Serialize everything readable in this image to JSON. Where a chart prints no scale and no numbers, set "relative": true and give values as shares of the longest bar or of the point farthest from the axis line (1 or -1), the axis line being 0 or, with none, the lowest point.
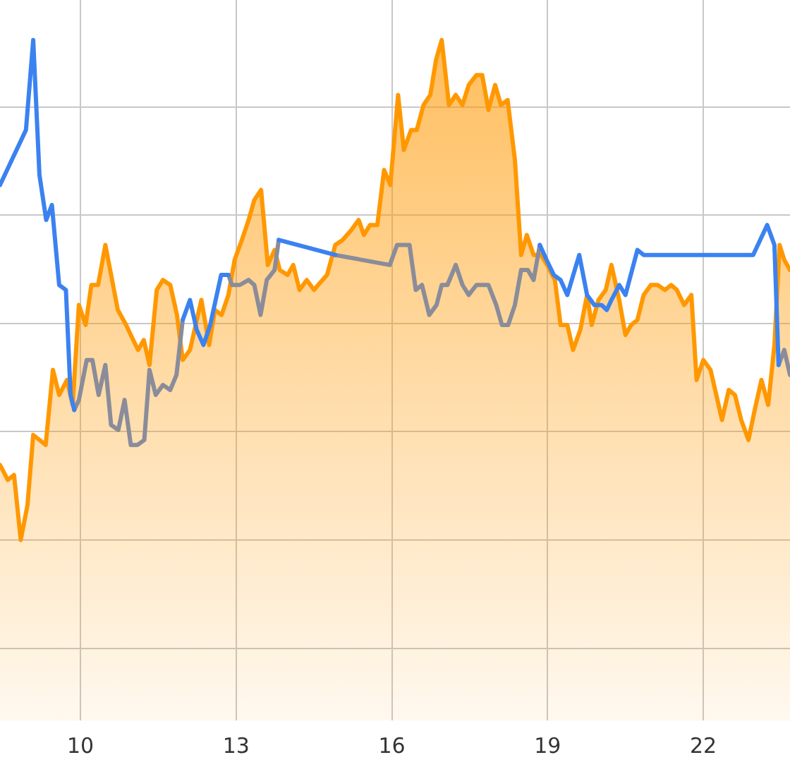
{
  "chart_data": {
    "type": "line",
    "relative": true,
    "grid": true,
    "xlim": [
      8.45,
      23.67
    ],
    "xticks": [
      10,
      13,
      16,
      19,
      22
    ],
    "series": [
      {
        "type": "area",
        "color": "#ff9800",
        "x": [
          8.45,
          8.6,
          8.72,
          8.85,
          8.98,
          9.09,
          9.33,
          9.47,
          9.59,
          9.74,
          9.85,
          9.97,
          10.1,
          10.21,
          10.34,
          10.48,
          10.72,
          10.88,
          10.97,
          11.11,
          11.22,
          11.33,
          11.47,
          11.59,
          11.73,
          11.86,
          11.97,
          12.11,
          12.33,
          12.48,
          12.59,
          12.72,
          12.85,
          12.97,
          13.11,
          13.24,
          13.35,
          13.48,
          13.61,
          13.74,
          13.84,
          13.99,
          14.1,
          14.22,
          14.36,
          14.5,
          14.58,
          14.75,
          14.91,
          15.05,
          15.22,
          15.36,
          15.46,
          15.58,
          15.72,
          15.85,
          15.97,
          16.12,
          16.23,
          16.37,
          16.48,
          16.61,
          16.74,
          16.85,
          16.96,
          17.1,
          17.23,
          17.36,
          17.48,
          17.63,
          17.74,
          17.86,
          17.99,
          18.1,
          18.23,
          18.37,
          18.49,
          18.6,
          18.73,
          18.87,
          18.99,
          19.14,
          19.25,
          19.38,
          19.49,
          19.63,
          19.76,
          19.85,
          19.98,
          20.12,
          20.23,
          20.38,
          20.5,
          20.61,
          20.73,
          20.85,
          20.99,
          21.12,
          21.26,
          21.38,
          21.49,
          21.63,
          21.77,
          21.87,
          22.0,
          22.14,
          22.25,
          22.36,
          22.49,
          22.61,
          22.73,
          22.87,
          22.99,
          23.12,
          23.25,
          23.37,
          23.47,
          23.56,
          23.67
        ],
        "values": [
          0.15,
          0.12,
          0.13,
          0,
          0.07,
          0.21,
          0.19,
          0.34,
          0.29,
          0.32,
          0.27,
          0.47,
          0.43,
          0.51,
          0.51,
          0.59,
          0.46,
          0.43,
          0.41,
          0.38,
          0.4,
          0.35,
          0.5,
          0.52,
          0.51,
          0.45,
          0.36,
          0.38,
          0.48,
          0.39,
          0.46,
          0.45,
          0.49,
          0.56,
          0.6,
          0.64,
          0.68,
          0.7,
          0.55,
          0.58,
          0.54,
          0.53,
          0.55,
          0.5,
          0.52,
          0.5,
          0.51,
          0.53,
          0.59,
          0.6,
          0.62,
          0.64,
          0.61,
          0.63,
          0.63,
          0.74,
          0.71,
          0.89,
          0.78,
          0.82,
          0.82,
          0.87,
          0.89,
          0.96,
          1,
          0.87,
          0.89,
          0.87,
          0.91,
          0.93,
          0.93,
          0.86,
          0.91,
          0.87,
          0.88,
          0.76,
          0.57,
          0.61,
          0.57,
          0.57,
          0.55,
          0.52,
          0.43,
          0.43,
          0.38,
          0.42,
          0.49,
          0.43,
          0.48,
          0.5,
          0.55,
          0.48,
          0.41,
          0.43,
          0.44,
          0.49,
          0.51,
          0.51,
          0.5,
          0.51,
          0.5,
          0.47,
          0.49,
          0.32,
          0.36,
          0.34,
          0.29,
          0.24,
          0.3,
          0.29,
          0.24,
          0.2,
          0.26,
          0.32,
          0.27,
          0.39,
          0.59,
          0.56,
          0.54
        ]
      },
      {
        "type": "line",
        "color": "#8a8c99",
        "x": [
          9.88,
          9.97,
          10.12,
          10.23,
          10.35,
          10.48,
          10.59,
          10.73,
          10.85,
          10.97,
          11.1,
          11.23,
          11.33,
          11.45,
          11.59,
          11.73,
          11.85,
          11.97,
          12.4,
          12.85,
          12.92,
          13.07,
          13.24,
          13.35,
          13.47,
          13.59,
          13.74,
          13.82,
          14.4,
          14.91,
          15.96,
          16.1,
          16.23,
          16.34,
          16.46,
          16.58,
          16.72,
          16.86,
          16.96,
          17.07,
          17.23,
          17.36,
          17.48,
          17.63,
          17.74,
          17.86,
          18.01,
          18.12,
          18.24,
          18.37,
          18.49,
          18.62,
          18.73,
          18.85,
          21.9,
          23.45,
          23.56,
          23.67
        ],
        "values": [
          0.26,
          0.28,
          0.36,
          0.36,
          0.29,
          0.35,
          0.23,
          0.22,
          0.28,
          0.19,
          0.19,
          0.2,
          0.34,
          0.29,
          0.31,
          0.3,
          0.33,
          0.44,
          null,
          0.53,
          0.51,
          0.51,
          0.52,
          0.51,
          0.45,
          0.52,
          0.54,
          0.6,
          null,
          0.57,
          0.55,
          0.59,
          0.59,
          0.59,
          0.5,
          0.51,
          0.45,
          0.47,
          0.51,
          0.51,
          0.55,
          0.51,
          0.49,
          0.51,
          0.51,
          0.51,
          0.47,
          0.43,
          0.43,
          0.47,
          0.54,
          0.54,
          0.52,
          0.59,
          null,
          0.35,
          0.38,
          0.33
        ]
      },
      {
        "type": "line",
        "color": "#3b82f0",
        "x": [
          8.45,
          8.95,
          9.09,
          9.21,
          9.34,
          9.45,
          9.59,
          9.72,
          9.81,
          9.88,
          10.9,
          11.97,
          12.11,
          12.24,
          12.37,
          12.5,
          12.71,
          12.85,
          13.3,
          13.82,
          14.91,
          16.9,
          18.85,
          18.98,
          19.12,
          19.25,
          19.38,
          19.61,
          19.76,
          19.9,
          20.04,
          20.14,
          20.23,
          20.38,
          20.5,
          20.73,
          20.85,
          22.96,
          23.23,
          23.37,
          23.45
        ],
        "values": [
          0.71,
          0.82,
          1,
          0.73,
          0.64,
          0.67,
          0.51,
          0.5,
          0.29,
          0.26,
          null,
          0.44,
          0.48,
          0.42,
          0.39,
          0.43,
          0.53,
          0.53,
          null,
          0.6,
          0.57,
          null,
          0.59,
          0.56,
          0.53,
          0.52,
          0.49,
          0.57,
          0.49,
          0.47,
          0.47,
          0.46,
          0.48,
          0.51,
          0.49,
          0.58,
          0.57,
          0.57,
          0.63,
          0.59,
          0.35
        ]
      }
    ]
  }
}
